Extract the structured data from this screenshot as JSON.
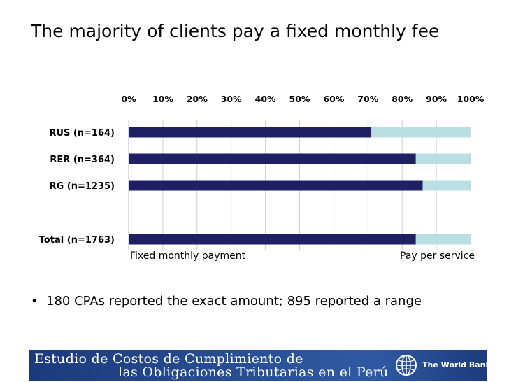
{
  "slide": {
    "title": "The majority of clients pay a fixed monthly fee",
    "bullet": "180 CPAs reported the exact amount; 895 reported a range"
  },
  "chart_data": {
    "type": "bar",
    "orientation": "horizontal",
    "stacked": true,
    "percent_stacked": true,
    "categories": [
      "RUS (n=164)",
      "RER (n=364)",
      "RG (n=1235)",
      "Total (n=1763)"
    ],
    "series": [
      {
        "name": "Fixed monthly payment",
        "values": [
          71,
          84,
          86,
          84
        ],
        "color": "#1f1f63"
      },
      {
        "name": "Pay per service",
        "values": [
          29,
          16,
          14,
          16
        ],
        "color": "#b9dfe3"
      }
    ],
    "xlim": [
      0,
      100
    ],
    "xticks": [
      "0%",
      "10%",
      "20%",
      "30%",
      "40%",
      "50%",
      "60%",
      "70%",
      "80%",
      "90%",
      "100%"
    ],
    "x_axis_position": "top",
    "grid": true,
    "legend_position": "bottom"
  },
  "footer": {
    "line1": "Estudio de Costos de Cumplimiento de",
    "line2": "las Obligaciones Tributarias en el Perú",
    "brand": "The World Bank",
    "logo_icon": "world-bank-globe-icon"
  }
}
